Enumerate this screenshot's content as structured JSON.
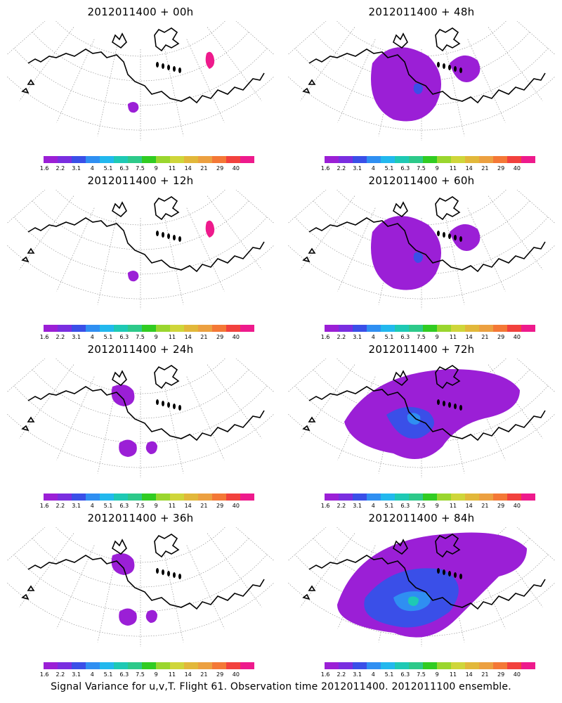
{
  "panels": [
    {
      "title": "2012011400 + 00h",
      "level": 0
    },
    {
      "title": "2012011400 + 48h",
      "level": 2
    },
    {
      "title": "2012011400 + 12h",
      "level": 0
    },
    {
      "title": "2012011400 + 60h",
      "level": 2
    },
    {
      "title": "2012011400 + 24h",
      "level": 1
    },
    {
      "title": "2012011400 + 72h",
      "level": 3
    },
    {
      "title": "2012011400 + 36h",
      "level": 1
    },
    {
      "title": "2012011400 + 84h",
      "level": 4
    }
  ],
  "colorbar": {
    "labels": [
      "1.6",
      "2.2",
      "3.1",
      "4",
      "5.1",
      "6.3",
      "7.5",
      "9",
      "11",
      "14",
      "21",
      "29",
      "40"
    ],
    "colors": [
      "#9b1fd6",
      "#7a2ee0",
      "#3a4fe8",
      "#2f8ff2",
      "#22b8ee",
      "#1ec9b4",
      "#2dc98a",
      "#31cc22",
      "#9ad62e",
      "#cfd63a",
      "#e2b83a",
      "#eca040",
      "#f47836",
      "#f2413e",
      "#ee1a8c"
    ]
  },
  "footer": "Signal Variance for u,v,T. Flight 61. Observation time 2012011400. 2012011100 ensemble."
}
